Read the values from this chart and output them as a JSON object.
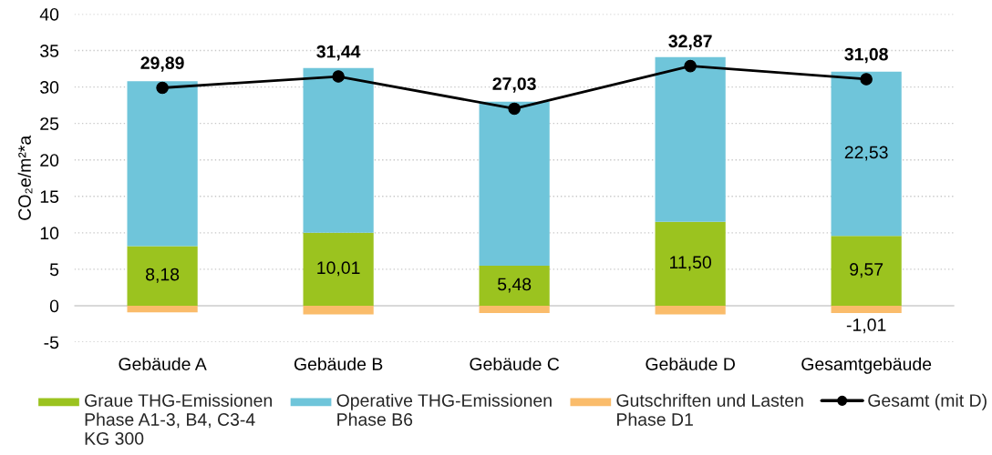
{
  "chart_data": {
    "type": "bar",
    "stacked": true,
    "ylabel": "CO₂e/m²*a",
    "categories": [
      "Gebäude A",
      "Gebäude B",
      "Gebäude C",
      "Gebäude D",
      "Gesamtgebäude"
    ],
    "series": [
      {
        "name": "Graue THG-Emissionen\nPhase A1-3, B4, C3-4\nKG 300",
        "color": "#9bc31f",
        "values": [
          8.18,
          10.01,
          5.48,
          11.5,
          9.57
        ],
        "value_labels": [
          "8,18",
          "10,01",
          "5,48",
          "11,50",
          "9,57"
        ]
      },
      {
        "name": "Operative THG-Emissionen\nPhase B6",
        "color": "#6fc5da",
        "values": [
          22.6,
          22.6,
          22.5,
          22.6,
          22.53
        ],
        "value_labels": [
          null,
          null,
          null,
          null,
          "22,53"
        ]
      },
      {
        "name": "Gutschriften und Lasten\nPhase D1",
        "color": "#fabc6b",
        "values": [
          -0.9,
          -1.2,
          -1.0,
          -1.2,
          -1.01
        ],
        "value_labels": [
          null,
          null,
          null,
          null,
          "-1,01"
        ]
      },
      {
        "name": "Gesamt (mit D)",
        "type": "line",
        "color": "#000000",
        "marker": "circle",
        "values": [
          29.89,
          31.44,
          27.03,
          32.87,
          31.08
        ],
        "value_labels": [
          "29,89",
          "31,44",
          "27,03",
          "32,87",
          "31,08"
        ]
      }
    ],
    "ylim": [
      -5,
      40
    ],
    "yticks": [
      -5,
      0,
      5,
      10,
      15,
      20,
      25,
      30,
      35,
      40
    ],
    "grid": "y",
    "legend": "bottom",
    "ref_lines": [
      {
        "axis": "y",
        "value": 0,
        "color": "#d9d9d9"
      }
    ]
  }
}
